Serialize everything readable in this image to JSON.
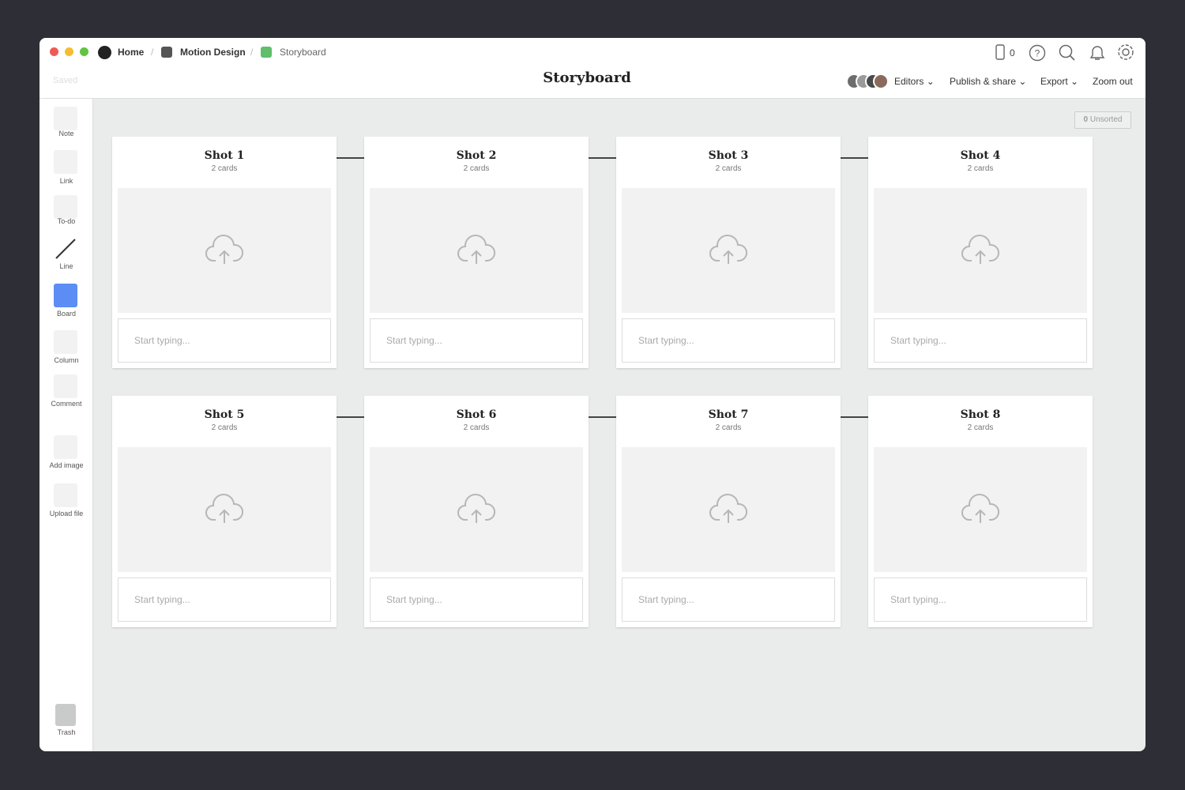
{
  "breadcrumbs": [
    "Home",
    "Motion Design",
    "Storyboard"
  ],
  "header": {
    "title": "Storyboard",
    "status": "Saved",
    "device_count": "0",
    "menu": [
      "Editors",
      "Publish & share",
      "Export",
      "Zoom out"
    ]
  },
  "sidebar": {
    "tools": [
      "Note",
      "Link",
      "To-do",
      "Line",
      "Board",
      "Column",
      "Comment",
      "Add image",
      "Upload file"
    ],
    "trash": "Trash"
  },
  "unsorted": {
    "count": "0",
    "label": "Unsorted"
  },
  "boards": [
    {
      "title": "Shot 1",
      "subtitle": "2 cards",
      "placeholder": "Start typing..."
    },
    {
      "title": "Shot 2",
      "subtitle": "2 cards",
      "placeholder": "Start typing..."
    },
    {
      "title": "Shot 3",
      "subtitle": "2 cards",
      "placeholder": "Start typing..."
    },
    {
      "title": "Shot 4",
      "subtitle": "2 cards",
      "placeholder": "Start typing..."
    },
    {
      "title": "Shot 5",
      "subtitle": "2 cards",
      "placeholder": "Start typing..."
    },
    {
      "title": "Shot 6",
      "subtitle": "2 cards",
      "placeholder": "Start typing..."
    },
    {
      "title": "Shot 7",
      "subtitle": "2 cards",
      "placeholder": "Start typing..."
    },
    {
      "title": "Shot 8",
      "subtitle": "2 cards",
      "placeholder": "Start typing..."
    }
  ]
}
